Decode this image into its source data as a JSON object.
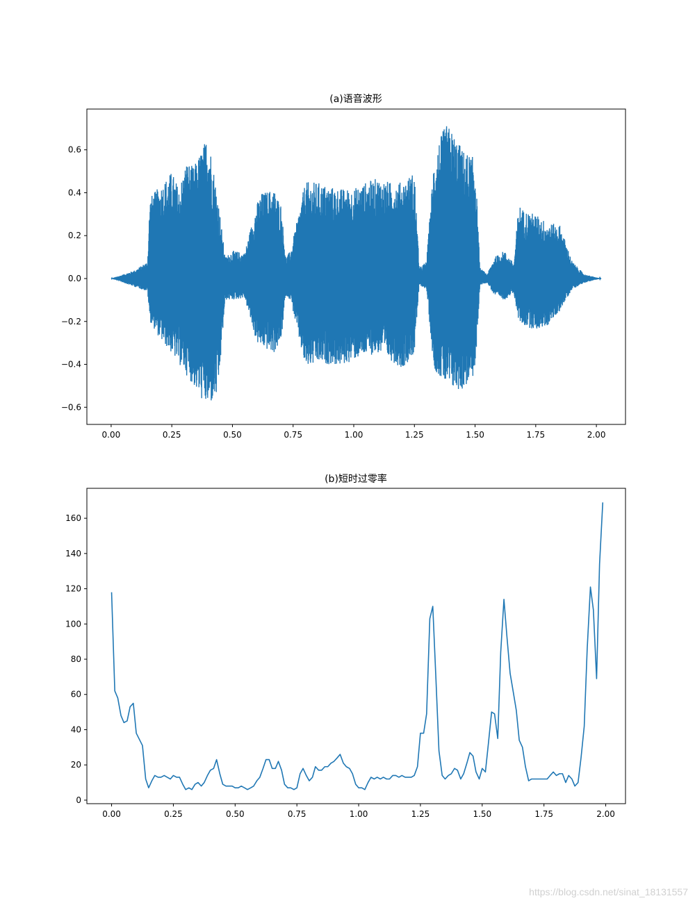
{
  "chart_data": [
    {
      "type": "line",
      "title": "(a)语音波形",
      "xlabel": "",
      "ylabel": "",
      "xlim": [
        -0.1,
        2.12
      ],
      "ylim": [
        -0.68,
        0.79
      ],
      "xticks": [
        0.0,
        0.25,
        0.5,
        0.75,
        1.0,
        1.25,
        1.5,
        1.75,
        2.0
      ],
      "xtick_labels": [
        "0.00",
        "0.25",
        "0.50",
        "0.75",
        "1.00",
        "1.25",
        "1.50",
        "1.75",
        "2.00"
      ],
      "yticks": [
        -0.6,
        -0.4,
        -0.2,
        0.0,
        0.2,
        0.4,
        0.6
      ],
      "ytick_labels": [
        "−0.6",
        "−0.4",
        "−0.2",
        "0.0",
        "0.2",
        "0.4",
        "0.6"
      ],
      "grid": false,
      "color": "#1f77b4",
      "series": [
        {
          "envelope_time": [
            0.0,
            0.04,
            0.1,
            0.15,
            0.16,
            0.2,
            0.25,
            0.28,
            0.31,
            0.34,
            0.38,
            0.4,
            0.44,
            0.47,
            0.5,
            0.55,
            0.6,
            0.62,
            0.67,
            0.7,
            0.72,
            0.74,
            0.8,
            0.85,
            0.9,
            0.95,
            1.0,
            1.05,
            1.1,
            1.15,
            1.2,
            1.25,
            1.27,
            1.3,
            1.33,
            1.35,
            1.38,
            1.4,
            1.45,
            1.5,
            1.52,
            1.55,
            1.58,
            1.62,
            1.66,
            1.68,
            1.7,
            1.75,
            1.8,
            1.85,
            1.9,
            1.95,
            2.0,
            2.02
          ],
          "envelope_upper": [
            0.0,
            0.015,
            0.04,
            0.08,
            0.38,
            0.43,
            0.5,
            0.42,
            0.55,
            0.52,
            0.62,
            0.68,
            0.38,
            0.1,
            0.13,
            0.12,
            0.35,
            0.4,
            0.42,
            0.35,
            0.1,
            0.13,
            0.45,
            0.45,
            0.43,
            0.42,
            0.42,
            0.45,
            0.47,
            0.45,
            0.45,
            0.5,
            0.05,
            0.08,
            0.55,
            0.64,
            0.72,
            0.7,
            0.6,
            0.56,
            0.05,
            0.02,
            0.1,
            0.13,
            0.07,
            0.35,
            0.32,
            0.3,
            0.26,
            0.25,
            0.08,
            0.02,
            0.005,
            0.0
          ],
          "envelope_lower": [
            0.0,
            -0.015,
            -0.04,
            -0.06,
            -0.2,
            -0.28,
            -0.35,
            -0.4,
            -0.45,
            -0.5,
            -0.58,
            -0.6,
            -0.55,
            -0.1,
            -0.1,
            -0.09,
            -0.3,
            -0.32,
            -0.35,
            -0.3,
            -0.08,
            -0.1,
            -0.42,
            -0.4,
            -0.4,
            -0.41,
            -0.38,
            -0.36,
            -0.35,
            -0.38,
            -0.42,
            -0.35,
            -0.03,
            -0.05,
            -0.42,
            -0.45,
            -0.5,
            -0.52,
            -0.52,
            -0.45,
            -0.03,
            -0.02,
            -0.08,
            -0.1,
            -0.07,
            -0.2,
            -0.22,
            -0.24,
            -0.22,
            -0.15,
            -0.05,
            -0.02,
            -0.005,
            0.0
          ]
        }
      ]
    },
    {
      "type": "line",
      "title": "(b)短时过零率",
      "xlabel": "",
      "ylabel": "",
      "xlim": [
        -0.1,
        2.08
      ],
      "ylim": [
        -2,
        177
      ],
      "xticks": [
        0.0,
        0.25,
        0.5,
        0.75,
        1.0,
        1.25,
        1.5,
        1.75,
        2.0
      ],
      "xtick_labels": [
        "0.00",
        "0.25",
        "0.50",
        "0.75",
        "1.00",
        "1.25",
        "1.50",
        "1.75",
        "2.00"
      ],
      "yticks": [
        0,
        20,
        40,
        60,
        80,
        100,
        120,
        140,
        160
      ],
      "ytick_labels": [
        "0",
        "20",
        "40",
        "60",
        "80",
        "100",
        "120",
        "140",
        "160"
      ],
      "grid": false,
      "color": "#1f77b4",
      "series": [
        {
          "x": [
            0.0,
            0.013,
            0.025,
            0.038,
            0.05,
            0.063,
            0.075,
            0.088,
            0.1,
            0.125,
            0.138,
            0.15,
            0.163,
            0.175,
            0.188,
            0.2,
            0.213,
            0.225,
            0.238,
            0.25,
            0.263,
            0.275,
            0.288,
            0.3,
            0.313,
            0.325,
            0.338,
            0.35,
            0.363,
            0.375,
            0.388,
            0.4,
            0.413,
            0.425,
            0.438,
            0.45,
            0.463,
            0.475,
            0.488,
            0.5,
            0.513,
            0.525,
            0.538,
            0.55,
            0.563,
            0.575,
            0.588,
            0.6,
            0.613,
            0.625,
            0.638,
            0.65,
            0.663,
            0.675,
            0.688,
            0.7,
            0.713,
            0.725,
            0.738,
            0.75,
            0.763,
            0.775,
            0.788,
            0.8,
            0.813,
            0.825,
            0.838,
            0.85,
            0.863,
            0.875,
            0.888,
            0.9,
            0.913,
            0.925,
            0.938,
            0.95,
            0.963,
            0.975,
            0.988,
            1.0,
            1.013,
            1.025,
            1.038,
            1.05,
            1.063,
            1.075,
            1.088,
            1.1,
            1.113,
            1.125,
            1.138,
            1.15,
            1.163,
            1.175,
            1.188,
            1.2,
            1.213,
            1.225,
            1.238,
            1.25,
            1.263,
            1.275,
            1.288,
            1.3,
            1.313,
            1.325,
            1.338,
            1.35,
            1.363,
            1.375,
            1.388,
            1.4,
            1.413,
            1.425,
            1.438,
            1.45,
            1.463,
            1.475,
            1.488,
            1.5,
            1.513,
            1.525,
            1.538,
            1.55,
            1.563,
            1.575,
            1.588,
            1.6,
            1.613,
            1.625,
            1.638,
            1.65,
            1.663,
            1.675,
            1.688,
            1.7,
            1.713,
            1.725,
            1.738,
            1.75,
            1.763,
            1.775,
            1.788,
            1.8,
            1.813,
            1.825,
            1.838,
            1.85,
            1.863,
            1.875,
            1.888,
            1.9,
            1.913,
            1.925,
            1.938,
            1.95,
            1.963,
            1.975,
            1.988
          ],
          "values": [
            118,
            62,
            58,
            48,
            44,
            45,
            53,
            55,
            38,
            31,
            12,
            7,
            11,
            14,
            13,
            13,
            14,
            13,
            12,
            14,
            13,
            13,
            9,
            6,
            7,
            6,
            9,
            10,
            8,
            10,
            14,
            17,
            18,
            23,
            15,
            9,
            8,
            8,
            8,
            7,
            7,
            8,
            7,
            6,
            7,
            8,
            11,
            13,
            18,
            23,
            23,
            18,
            18,
            22,
            17,
            9,
            7,
            7,
            6,
            7,
            15,
            18,
            14,
            11,
            13,
            19,
            17,
            17,
            19,
            19,
            21,
            22,
            24,
            26,
            21,
            19,
            18,
            15,
            9,
            7,
            7,
            6,
            10,
            13,
            12,
            13,
            12,
            13,
            12,
            12,
            14,
            14,
            13,
            14,
            13,
            13,
            13,
            14,
            19,
            38,
            38,
            49,
            103,
            110,
            68,
            28,
            14,
            12,
            14,
            15,
            18,
            17,
            12,
            15,
            21,
            27,
            25,
            16,
            12,
            18,
            16,
            32,
            50,
            49,
            35,
            84,
            114,
            93,
            72,
            62,
            51,
            34,
            30,
            19,
            11,
            12,
            12,
            12,
            12,
            12,
            12,
            14,
            16,
            14,
            15,
            15,
            10,
            14,
            12,
            8,
            10,
            24,
            42,
            86,
            121,
            108,
            69,
            134,
            169
          ]
        }
      ]
    }
  ],
  "watermark": "https://blog.csdn.net/sinat_18131557"
}
